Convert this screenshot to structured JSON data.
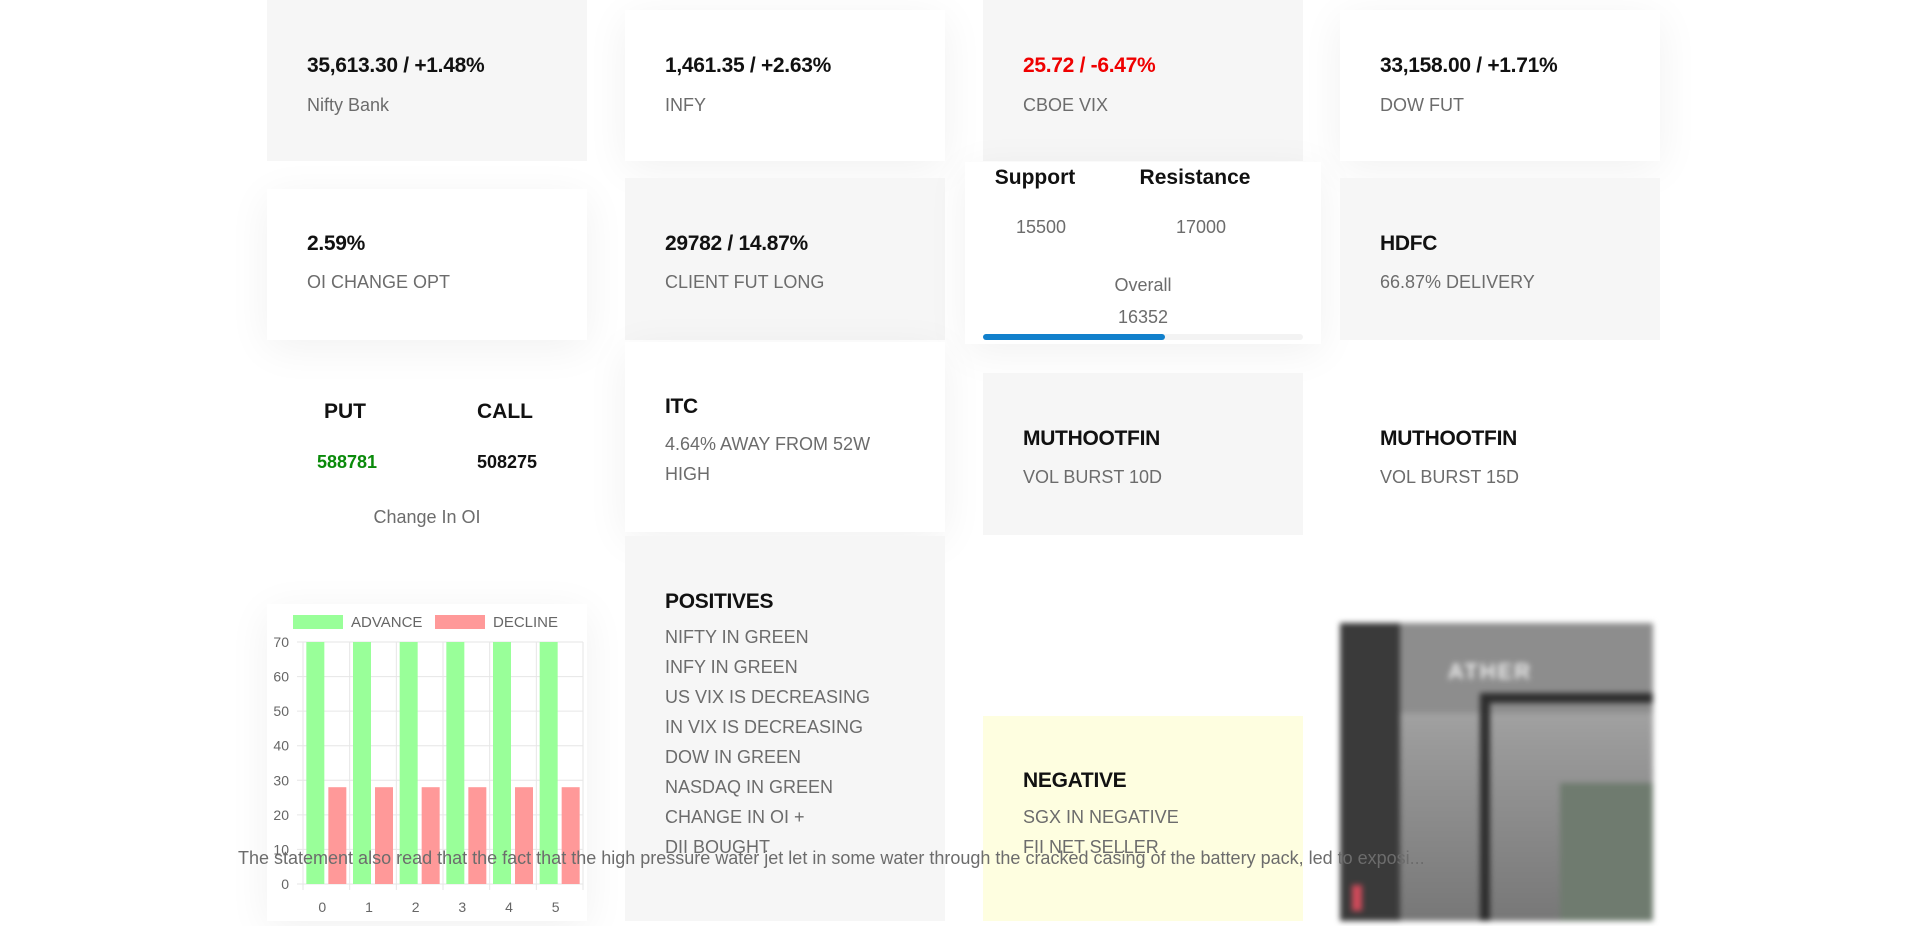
{
  "cards": [
    {
      "value": "35,613.30 / +1.48%",
      "label": "Nifty Bank"
    },
    {
      "value": "1,461.35 / +2.63%",
      "label": "INFY"
    },
    {
      "value": "25.72 / -6.47%",
      "label": "CBOE VIX",
      "value_color": "#ef0000"
    },
    {
      "value": "33,158.00 / +1.71%",
      "label": "DOW FUT"
    },
    {
      "value": "2.59%",
      "label": "OI CHANGE OPT"
    },
    {
      "value": "29782 / 14.87%",
      "label": "CLIENT FUT LONG"
    },
    {
      "value": "HDFC",
      "label": "66.87% DELIVERY"
    },
    {
      "value": "ITC",
      "label_lines": [
        "4.64% AWAY FROM 52W",
        "HIGH"
      ]
    },
    {
      "value": "MUTHOOTFIN",
      "label": "VOL BURST 10D"
    },
    {
      "value": "MUTHOOTFIN",
      "label": "VOL BURST 15D"
    }
  ],
  "levels": {
    "support_label": "Support",
    "resistance_label": "Resistance",
    "support_value": "15500",
    "resistance_value": "17000",
    "overall_label": "Overall",
    "overall_value": "16352",
    "progress_fraction": 0.57
  },
  "oi": {
    "put_label": "PUT",
    "call_label": "CALL",
    "put_value": "588781",
    "call_value": "508275",
    "caption": "Change In OI",
    "put_color": "#0a8a0a"
  },
  "positives": {
    "title": "POSITIVES",
    "items": [
      "NIFTY IN GREEN",
      "INFY IN GREEN",
      "US VIX IS DECREASING",
      "IN VIX IS DECREASING",
      "DOW IN GREEN",
      "NASDAQ IN GREEN",
      "CHANGE IN OI +",
      "DII BOUGHT"
    ]
  },
  "negatives": {
    "title": "NEGATIVE",
    "items": [
      "SGX IN NEGATIVE",
      "FII NET SELLER"
    ]
  },
  "chart_data": {
    "type": "bar",
    "categories": [
      "0",
      "1",
      "2",
      "3",
      "4",
      "5"
    ],
    "series": [
      {
        "name": "ADVANCE",
        "values": [
          70,
          70,
          70,
          70,
          70,
          70
        ],
        "color": "#99ff99"
      },
      {
        "name": "DECLINE",
        "values": [
          28,
          28,
          28,
          28,
          28,
          28
        ],
        "color": "#ff9999"
      }
    ],
    "y_ticks": [
      "0",
      "10",
      "20",
      "30",
      "40",
      "50",
      "60",
      "70"
    ],
    "ylim": [
      0,
      70
    ],
    "legend_position": "top",
    "grid": true
  },
  "image": {
    "sign_text": "ATHER"
  },
  "footer": {
    "text": "The statement also read that the fact that the high pressure water jet let in some water through the cracked casing of the battery pack, led to exposi..."
  }
}
